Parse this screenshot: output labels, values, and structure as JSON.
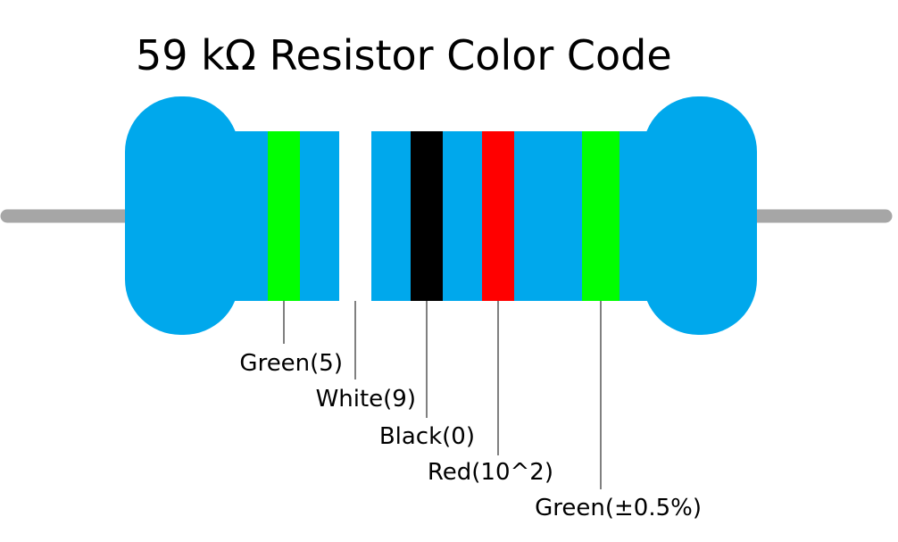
{
  "title": "59 kΩ Resistor Color Code",
  "bands": [
    {
      "label": "Green(5)"
    },
    {
      "label": "White(9)"
    },
    {
      "label": "Black(0)"
    },
    {
      "label": "Red(10^2)"
    },
    {
      "label": "Green(±0.5%)"
    }
  ]
}
